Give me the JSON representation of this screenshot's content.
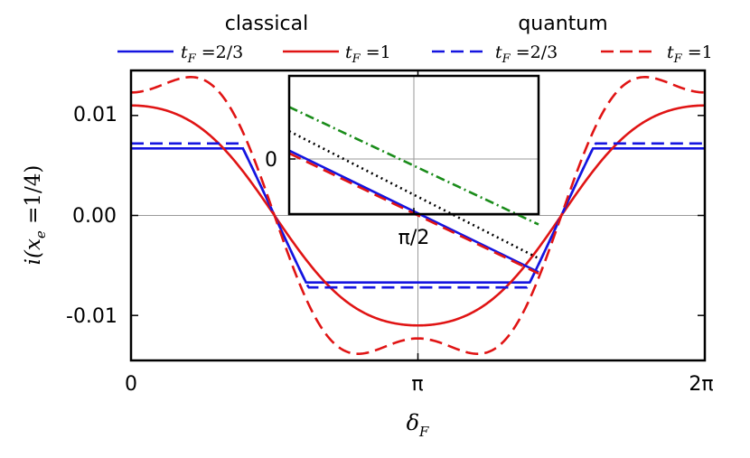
{
  "chart_data": {
    "type": "line",
    "title": "",
    "legend_groups": [
      "classical",
      "quantum"
    ],
    "xlabel": "δF",
    "ylabel": "i(xe = 1/4)",
    "x_ticks": [
      {
        "value": 0,
        "label": "0"
      },
      {
        "value": 3.14159,
        "label": "π"
      },
      {
        "value": 6.28319,
        "label": "2π"
      }
    ],
    "y_ticks": [
      {
        "value": 0.01,
        "label": "0.01"
      },
      {
        "value": 0.0,
        "label": "0.00"
      },
      {
        "value": -0.01,
        "label": "-0.01"
      }
    ],
    "xlim": [
      0,
      6.28319
    ],
    "ylim": [
      -0.0145,
      0.0145
    ],
    "series": [
      {
        "name": "classical tF=2/3",
        "color": "#1414e0",
        "dash": "solid",
        "amp": 0.0067,
        "width": 2.95
      },
      {
        "name": "classical tF=1",
        "color": "#e01414",
        "dash": "solid",
        "amp": 0.011,
        "width": 0,
        "shift": 0.05
      },
      {
        "name": "quantum tF=2/3",
        "color": "#1414e0",
        "dash": "dashed",
        "amp": 0.0072,
        "width": 2.75
      },
      {
        "name": "quantum tF=1",
        "color": "#e01414",
        "dash": "dashed",
        "amp": 0.0123,
        "width": 0,
        "shift": 0.22
      }
    ],
    "legend": [
      {
        "label": "tF = 2/3",
        "color": "#1414e0",
        "dash": "solid"
      },
      {
        "label": "tF = 1",
        "color": "#e01414",
        "dash": "solid"
      },
      {
        "label": "tF = 2/3",
        "color": "#1414e0",
        "dash": "dashed"
      },
      {
        "label": "tF = 1",
        "color": "#e01414",
        "dash": "dashed"
      }
    ],
    "inset": {
      "x_tick_label": "π/2",
      "y_tick_label": "0",
      "xlim": [
        -1,
        1
      ],
      "ylim": [
        -1,
        1
      ],
      "lines": [
        {
          "kind": "blue-solid",
          "color": "#1414e0",
          "dash": "solid",
          "y0": 0.92,
          "slope": -0.88
        },
        {
          "kind": "red-dashed",
          "color": "#e01414",
          "dash": "dashed",
          "y0": 0.88,
          "slope": -0.87
        },
        {
          "kind": "black-dotted",
          "color": "#000000",
          "dash": "dotted",
          "y0": 1.2,
          "slope": -0.92
        },
        {
          "kind": "green-dashdot",
          "color": "#1a8c1a",
          "dash": "dashdot",
          "y0": 1.55,
          "slope": -0.85
        }
      ]
    }
  }
}
